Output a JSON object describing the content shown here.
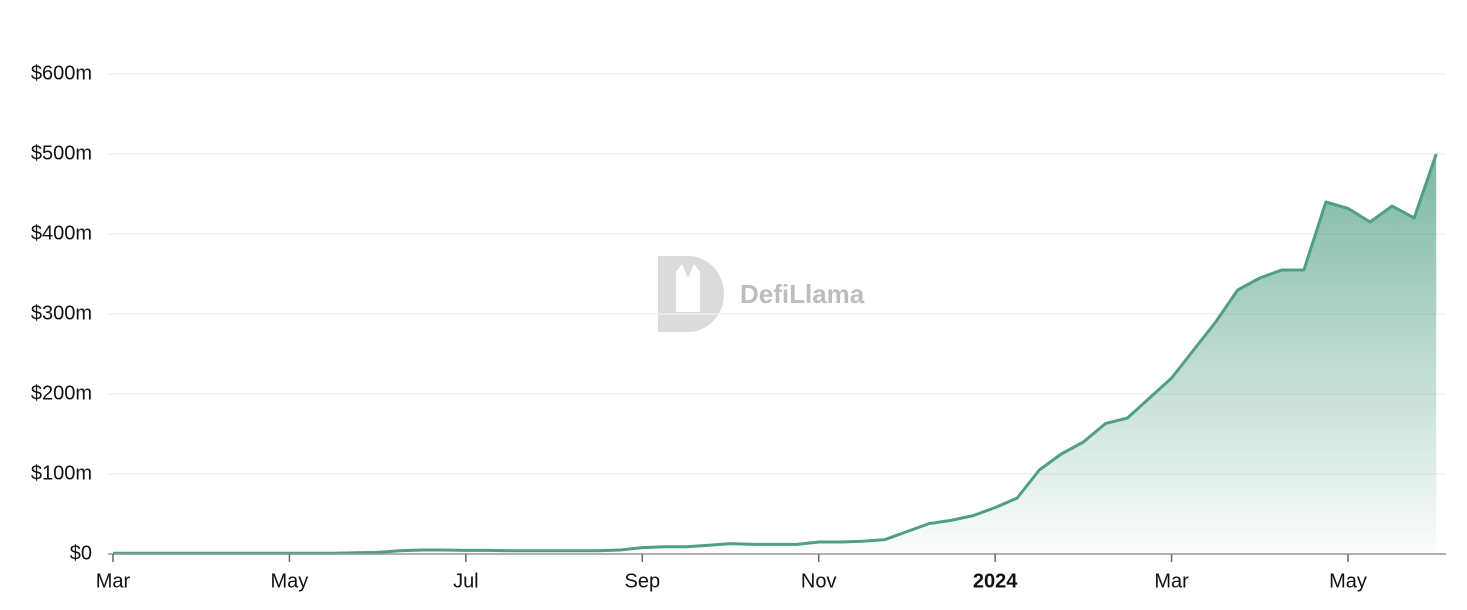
{
  "chart_data": {
    "type": "area",
    "watermark": "DefiLlama",
    "categories": [
      "Mar",
      null,
      null,
      null,
      null,
      null,
      null,
      null,
      "May",
      null,
      null,
      null,
      null,
      null,
      null,
      null,
      "Jul",
      null,
      null,
      null,
      null,
      null,
      null,
      null,
      "Sep",
      null,
      null,
      null,
      null,
      null,
      null,
      null,
      "Nov",
      null,
      null,
      null,
      null,
      null,
      null,
      null,
      "2024",
      null,
      null,
      null,
      null,
      null,
      null,
      null,
      "Mar",
      null,
      null,
      null,
      null,
      null,
      null,
      null,
      "May",
      null,
      null,
      null,
      null
    ],
    "values": [
      1,
      1,
      1,
      1,
      1,
      1,
      1,
      1,
      1,
      1,
      1,
      1.5,
      2,
      4,
      5,
      5,
      4.5,
      4.5,
      4,
      4,
      4,
      4,
      4,
      5,
      8,
      9,
      9,
      11,
      13,
      12,
      12,
      12,
      15,
      15,
      16,
      18,
      28,
      38,
      42,
      48,
      58,
      70,
      105,
      125,
      140,
      163,
      170,
      195,
      220,
      255,
      290,
      330,
      345,
      355,
      355,
      440,
      432,
      415,
      435,
      420,
      500
    ],
    "color": "#4f9e85",
    "ylim": [
      0,
      600
    ],
    "yticks": [
      {
        "value": 0,
        "label": "$0"
      },
      {
        "value": 100,
        "label": "$100m"
      },
      {
        "value": 200,
        "label": "$200m"
      },
      {
        "value": 300,
        "label": "$300m"
      },
      {
        "value": 400,
        "label": "$400m"
      },
      {
        "value": 500,
        "label": "$500m"
      },
      {
        "value": 600,
        "label": "$600m"
      }
    ],
    "grid": true
  }
}
